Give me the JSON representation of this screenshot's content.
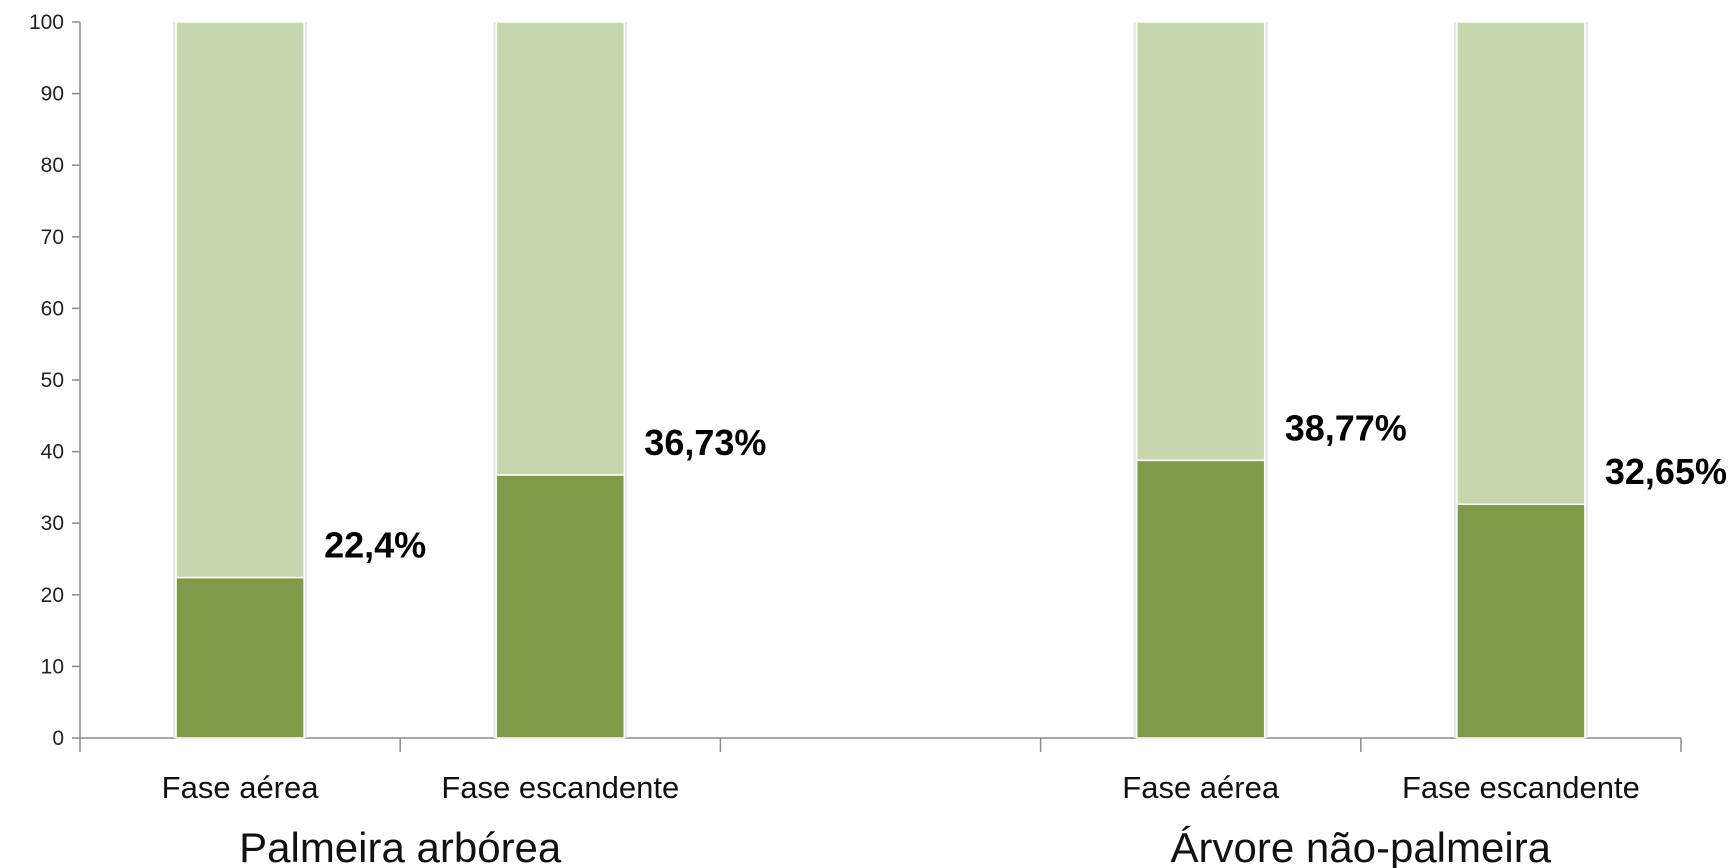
{
  "chart_data": {
    "type": "bar",
    "stacked": true,
    "groups": [
      {
        "label": "Palmeira arbórea",
        "categories": [
          "Fase aérea",
          "Fase escandente"
        ],
        "values": [
          22.4,
          36.73
        ],
        "data_labels": [
          "22,4%",
          "36,73%"
        ]
      },
      {
        "label": "Árvore não-palmeira",
        "categories": [
          "Fase aérea",
          "Fase escandente"
        ],
        "values": [
          38.77,
          32.65
        ],
        "data_labels": [
          "38,77%",
          "32,65%"
        ]
      }
    ],
    "total": 100,
    "ylim": [
      0,
      100
    ],
    "yticks": [
      "0",
      "10",
      "20",
      "30",
      "40",
      "50",
      "60",
      "70",
      "80",
      "90",
      "100"
    ],
    "grid": false,
    "legend": "none",
    "title": "",
    "xlabel": "",
    "ylabel": "",
    "colors": {
      "lower_segment": "#7f9b49",
      "upper_segment": "#c6d7ad",
      "axis": "#8c8c8c"
    }
  }
}
